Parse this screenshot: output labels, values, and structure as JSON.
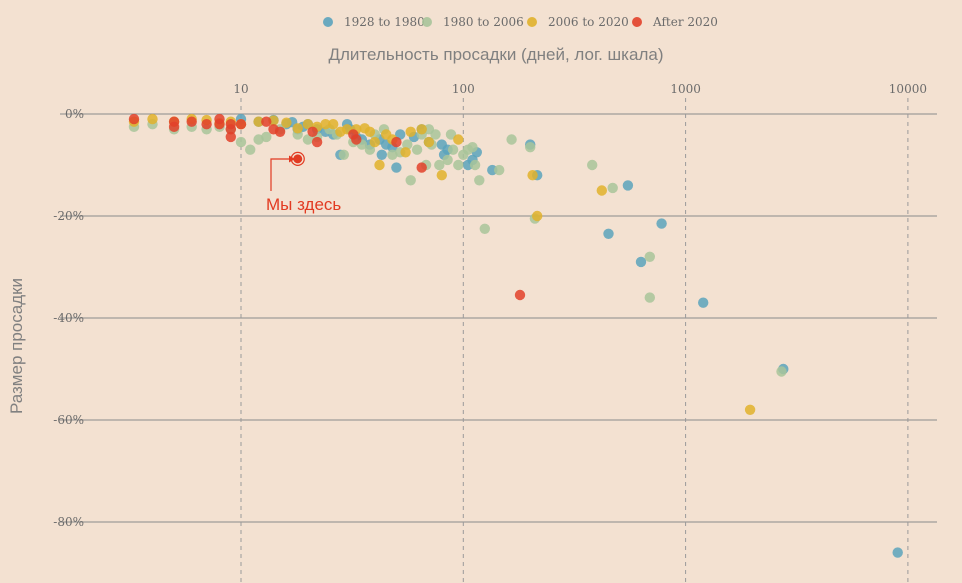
{
  "chart_data": {
    "type": "scatter",
    "title": "",
    "xlabel": "Длительность просадки (дней, лог. шкала)",
    "ylabel": "Размер просадки",
    "x_scale": "log",
    "xlim": [
      3.1,
      12500
    ],
    "ylim": [
      -90,
      0
    ],
    "x_ticks": [
      10,
      100,
      1000,
      10000
    ],
    "x_tick_labels": [
      "10",
      "100",
      "1000",
      "10000"
    ],
    "y_ticks": [
      0,
      -20,
      -40,
      -60,
      -80
    ],
    "y_tick_labels": [
      "0%",
      "-20%",
      "-40%",
      "-60%",
      "-80%"
    ],
    "grid": "horizontal solid at y ticks, vertical dashed at x ticks",
    "legend_position": "top-center",
    "annotation": {
      "text": "Мы здесь",
      "x": 18,
      "y": -8.8
    },
    "series": [
      {
        "name": "1928 to 1980",
        "color": "#5ba3bc",
        "points": [
          [
            10,
            -1
          ],
          [
            12,
            -1.5
          ],
          [
            14,
            -1.2
          ],
          [
            16,
            -2
          ],
          [
            17,
            -1.6
          ],
          [
            18,
            -3
          ],
          [
            19,
            -2.5
          ],
          [
            20,
            -2
          ],
          [
            22,
            -3
          ],
          [
            24,
            -3.5
          ],
          [
            26,
            -4
          ],
          [
            28,
            -8
          ],
          [
            30,
            -2
          ],
          [
            31,
            -3
          ],
          [
            33,
            -4.5
          ],
          [
            35,
            -5
          ],
          [
            38,
            -6
          ],
          [
            42,
            -5
          ],
          [
            45,
            -6
          ],
          [
            43,
            -8
          ],
          [
            48,
            -6.5
          ],
          [
            50,
            -10.5
          ],
          [
            52,
            -4
          ],
          [
            60,
            -4.5
          ],
          [
            65,
            -3
          ],
          [
            70,
            -5.5
          ],
          [
            80,
            -6
          ],
          [
            82,
            -8
          ],
          [
            85,
            -7
          ],
          [
            105,
            -10
          ],
          [
            110,
            -9
          ],
          [
            115,
            -7.5
          ],
          [
            135,
            -11
          ],
          [
            200,
            -6
          ],
          [
            215,
            -12
          ],
          [
            450,
            -23.5
          ],
          [
            550,
            -14
          ],
          [
            630,
            -29
          ],
          [
            780,
            -21.5
          ],
          [
            1200,
            -37
          ],
          [
            2750,
            -50
          ],
          [
            9000,
            -86
          ]
        ]
      },
      {
        "name": "1980 to 2006",
        "color": "#a8c49a",
        "points": [
          [
            3.3,
            -2.5
          ],
          [
            4,
            -2
          ],
          [
            5,
            -3
          ],
          [
            6,
            -2.5
          ],
          [
            7,
            -3
          ],
          [
            8,
            -2.5
          ],
          [
            9,
            -3
          ],
          [
            10,
            -5.5
          ],
          [
            11,
            -7
          ],
          [
            12,
            -5
          ],
          [
            13,
            -4.5
          ],
          [
            15,
            -3
          ],
          [
            18,
            -4
          ],
          [
            20,
            -5
          ],
          [
            22,
            -4.5
          ],
          [
            25,
            -3
          ],
          [
            27,
            -4
          ],
          [
            29,
            -8
          ],
          [
            32,
            -5.5
          ],
          [
            35,
            -6
          ],
          [
            38,
            -7
          ],
          [
            40,
            -4
          ],
          [
            44,
            -3
          ],
          [
            48,
            -8
          ],
          [
            52,
            -7.5
          ],
          [
            56,
            -6
          ],
          [
            58,
            -13
          ],
          [
            62,
            -7
          ],
          [
            65,
            -4
          ],
          [
            68,
            -10
          ],
          [
            70,
            -3
          ],
          [
            72,
            -6
          ],
          [
            75,
            -4
          ],
          [
            78,
            -10
          ],
          [
            85,
            -9
          ],
          [
            88,
            -4
          ],
          [
            90,
            -7
          ],
          [
            95,
            -10
          ],
          [
            100,
            -8
          ],
          [
            105,
            -7
          ],
          [
            110,
            -6.5
          ],
          [
            113,
            -10
          ],
          [
            118,
            -13
          ],
          [
            125,
            -22.5
          ],
          [
            145,
            -11
          ],
          [
            165,
            -5
          ],
          [
            200,
            -6.5
          ],
          [
            210,
            -20.5
          ],
          [
            380,
            -10
          ],
          [
            470,
            -14.5
          ],
          [
            690,
            -28
          ],
          [
            690,
            -36
          ],
          [
            2700,
            -50.5
          ]
        ]
      },
      {
        "name": "2006 to 2020",
        "color": "#e0b12b",
        "points": [
          [
            3.3,
            -1.5
          ],
          [
            4,
            -1
          ],
          [
            5,
            -1.5
          ],
          [
            6,
            -1
          ],
          [
            7,
            -1.2
          ],
          [
            8,
            -1.8
          ],
          [
            9,
            -1.5
          ],
          [
            10,
            -2
          ],
          [
            12,
            -1.5
          ],
          [
            14,
            -1.3
          ],
          [
            16,
            -1.7
          ],
          [
            18,
            -2.8
          ],
          [
            20,
            -2
          ],
          [
            22,
            -2.5
          ],
          [
            24,
            -2
          ],
          [
            26,
            -2
          ],
          [
            28,
            -3.5
          ],
          [
            30,
            -3
          ],
          [
            33,
            -3
          ],
          [
            36,
            -2.8
          ],
          [
            38,
            -3.5
          ],
          [
            40,
            -5.5
          ],
          [
            42,
            -10
          ],
          [
            45,
            -4
          ],
          [
            48,
            -5
          ],
          [
            55,
            -7.5
          ],
          [
            58,
            -3.5
          ],
          [
            65,
            -3
          ],
          [
            70,
            -5.5
          ],
          [
            80,
            -12
          ],
          [
            95,
            -5
          ],
          [
            205,
            -12
          ],
          [
            215,
            -20
          ],
          [
            420,
            -15
          ],
          [
            1950,
            -58
          ]
        ]
      },
      {
        "name": "After 2020",
        "color": "#e2412a",
        "points": [
          [
            3.3,
            -1
          ],
          [
            5,
            -1.5
          ],
          [
            5,
            -2.5
          ],
          [
            6,
            -1.5
          ],
          [
            7,
            -2
          ],
          [
            8,
            -1
          ],
          [
            8,
            -2
          ],
          [
            9,
            -2
          ],
          [
            9,
            -3
          ],
          [
            9,
            -4.5
          ],
          [
            10,
            -2
          ],
          [
            13,
            -1.5
          ],
          [
            14,
            -3
          ],
          [
            15,
            -3.5
          ],
          [
            21,
            -3.5
          ],
          [
            22,
            -5.5
          ],
          [
            32,
            -4
          ],
          [
            33,
            -5
          ],
          [
            50,
            -5.5
          ],
          [
            65,
            -10.5
          ],
          [
            180,
            -35.5
          ]
        ]
      }
    ]
  }
}
